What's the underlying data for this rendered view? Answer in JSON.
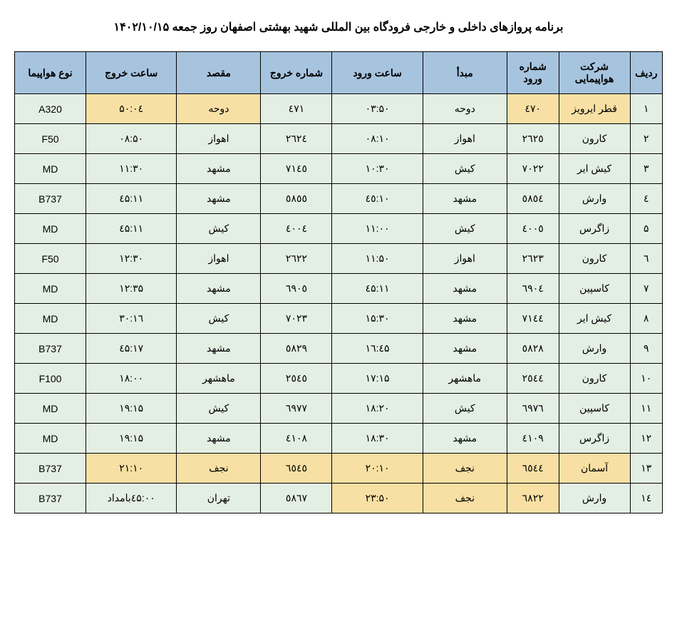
{
  "title": "برنامه پروازهای داخلی و خارجی فرودگاه بین المللی شهید بهشتی اصفهان روز جمعه ۱۴۰۲/۱۰/۱۵",
  "columns": {
    "row": "ردیف",
    "airline": "شرکت هواپیمایی",
    "arrivalNo": "شماره ورود",
    "origin": "مبدأ",
    "arrivalTime": "ساعت ورود",
    "departureNo": "شماره خروج",
    "destination": "مقصد",
    "departureTime": "ساعت خروج",
    "aircraft": "نوع هواپیما"
  },
  "rows": [
    {
      "row": "۱",
      "airline": "قطر ایرویز",
      "arrNo": "٤٧٠",
      "origin": "دوحه",
      "arrTime": "۰۳:۵۰",
      "depNo": "٤٧١",
      "dest": "دوحه",
      "depTime": "۰٤:۵۰",
      "aircraft": "A320",
      "hl": {
        "airline": true,
        "arrNo": true,
        "depTime": true,
        "dest": true
      }
    },
    {
      "row": "۲",
      "airline": "کارون",
      "arrNo": "٢٦٢٥",
      "origin": "اهواز",
      "arrTime": "۰۸:۱۰",
      "depNo": "٢٦٢٤",
      "dest": "اهواز",
      "depTime": "۰۸:۵۰",
      "aircraft": "F50"
    },
    {
      "row": "۳",
      "airline": "کیش ایر",
      "arrNo": "٧٠٢٢",
      "origin": "کیش",
      "arrTime": "۱۰:۳۰",
      "depNo": "٧١٤٥",
      "dest": "مشهد",
      "depTime": "۱۱:۳۰",
      "aircraft": "MD"
    },
    {
      "row": "٤",
      "airline": "وارش",
      "arrNo": "٥٨٥٤",
      "origin": "مشهد",
      "arrTime": "۱۰:٤٥",
      "depNo": "٥٨٥٥",
      "dest": "مشهد",
      "depTime": "۱۱:٤۵",
      "aircraft": "B737"
    },
    {
      "row": "۵",
      "airline": "زاگرس",
      "arrNo": "٤٠٠٥",
      "origin": "کیش",
      "arrTime": "۱۱:۰۰",
      "depNo": "٤٠٠٤",
      "dest": "کیش",
      "depTime": "۱۱:٤۵",
      "aircraft": "MD"
    },
    {
      "row": "٦",
      "airline": "کارون",
      "arrNo": "٢٦٢٣",
      "origin": "اهواز",
      "arrTime": "۱۱:۵۰",
      "depNo": "٢٦٢٢",
      "dest": "اهواز",
      "depTime": "۱۲:۳۰",
      "aircraft": "F50"
    },
    {
      "row": "۷",
      "airline": "کاسپین",
      "arrNo": "٦٩٠٤",
      "origin": "مشهد",
      "arrTime": "۱۱:٤۵",
      "depNo": "٦٩٠٥",
      "dest": "مشهد",
      "depTime": "۱۲:۳۵",
      "aircraft": "MD"
    },
    {
      "row": "۸",
      "airline": "کیش ایر",
      "arrNo": "٧١٤٤",
      "origin": "مشهد",
      "arrTime": "۱۵:۳۰",
      "depNo": "٧٠٢٣",
      "dest": "کیش",
      "depTime": "۱٦:۳۰",
      "aircraft": "MD"
    },
    {
      "row": "۹",
      "airline": "وارش",
      "arrNo": "٥٨٢٨",
      "origin": "مشهد",
      "arrTime": "۱٦:٤۵",
      "depNo": "٥٨٢٩",
      "dest": "مشهد",
      "depTime": "۱۷:٤۵",
      "aircraft": "B737"
    },
    {
      "row": "۱۰",
      "airline": "کارون",
      "arrNo": "٢٥٤٤",
      "origin": "ماهشهر",
      "arrTime": "۱۷:۱۵",
      "depNo": "٢٥٤٥",
      "dest": "ماهشهر",
      "depTime": "۱۸:۰۰",
      "aircraft": "F100"
    },
    {
      "row": "۱۱",
      "airline": "کاسپین",
      "arrNo": "٦٩٧٦",
      "origin": "کیش",
      "arrTime": "۱۸:۲۰",
      "depNo": "٦٩٧٧",
      "dest": "کیش",
      "depTime": "۱۹:۱۵",
      "aircraft": "MD"
    },
    {
      "row": "۱۲",
      "airline": "زاگرس",
      "arrNo": "٤١٠٩",
      "origin": "مشهد",
      "arrTime": "۱۸:۳۰",
      "depNo": "٤١٠٨",
      "dest": "مشهد",
      "depTime": "۱۹:۱۵",
      "aircraft": "MD"
    },
    {
      "row": "۱۳",
      "airline": "آسمان",
      "arrNo": "٦٥٤٤",
      "origin": "نجف",
      "arrTime": "۲۰:۱۰",
      "depNo": "٦٥٤٥",
      "dest": "نجف",
      "depTime": "۲۱:۱۰",
      "aircraft": "B737",
      "hl": {
        "airline": true,
        "arrNo": true,
        "origin": true,
        "arrTime": true,
        "depNo": true,
        "dest": true,
        "depTime": true
      }
    },
    {
      "row": "١٤",
      "airline": "وارش",
      "arrNo": "٦٨٢٢",
      "origin": "نجف",
      "arrTime": "۲۳:۵۰",
      "depNo": "٥٨٦٧",
      "dest": "تهران",
      "depTime": "۰۰:٤۵بامداد",
      "aircraft": "B737",
      "hl": {
        "arrNo": true,
        "origin": true,
        "arrTime": true
      }
    }
  ]
}
